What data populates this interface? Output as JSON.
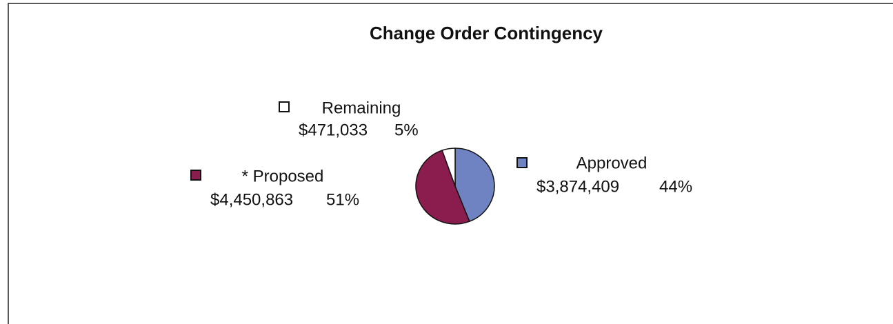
{
  "chart_data": {
    "type": "pie",
    "title": "Change Order Contingency",
    "categories": [
      "Approved",
      "* Proposed",
      "Remaining"
    ],
    "values": [
      3874409,
      4450863,
      471033
    ],
    "value_labels": [
      "$3,874,409",
      "$4,450,863",
      "$471,033"
    ],
    "percents": [
      44,
      51,
      5
    ],
    "percent_labels": [
      "44%",
      "51%",
      "5%"
    ],
    "colors": [
      "#6f83c2",
      "#8a1d4e",
      "#ffffff"
    ]
  }
}
